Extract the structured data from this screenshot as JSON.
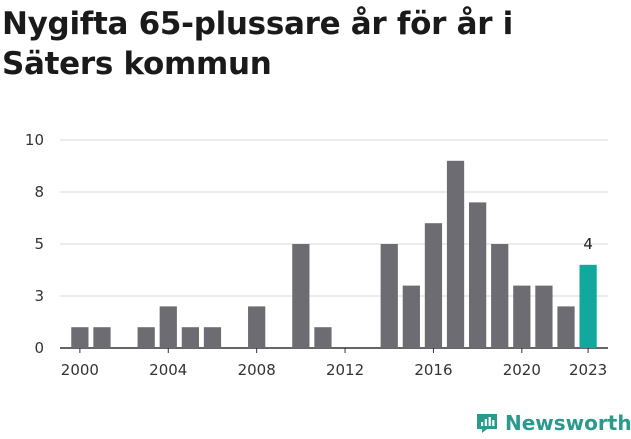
{
  "chart_data": {
    "type": "bar",
    "title": "Nygifta 65-plussare år för år i Säters kommun",
    "xlabel": "",
    "ylabel": "",
    "ylim": [
      0,
      10
    ],
    "yticks": [
      "0",
      "3",
      "5",
      "8",
      "10"
    ],
    "categories": [
      "2000",
      "2001",
      "2002",
      "2003",
      "2004",
      "2005",
      "2006",
      "2007",
      "2008",
      "2009",
      "2010",
      "2011",
      "2012",
      "2013",
      "2014",
      "2015",
      "2016",
      "2017",
      "2018",
      "2019",
      "2020",
      "2021",
      "2022",
      "2023"
    ],
    "values": [
      1,
      1,
      0,
      1,
      2,
      1,
      1,
      0,
      2,
      0,
      5,
      1,
      0,
      0,
      5,
      3,
      6,
      9,
      7,
      5,
      3,
      3,
      2,
      4
    ],
    "xtick_labels": [
      "2000",
      "2004",
      "2008",
      "2012",
      "2016",
      "2020",
      "2023"
    ],
    "highlight_index": 23,
    "highlight_label": "4",
    "colors": {
      "bar": "#6d6c72",
      "highlight": "#13a89e",
      "grid": "#d9d9d9",
      "axis": "#333333"
    }
  },
  "brand": {
    "name": "Newsworthy",
    "icon": "newsworthy-logo-icon",
    "color": "#2a9a8c"
  }
}
